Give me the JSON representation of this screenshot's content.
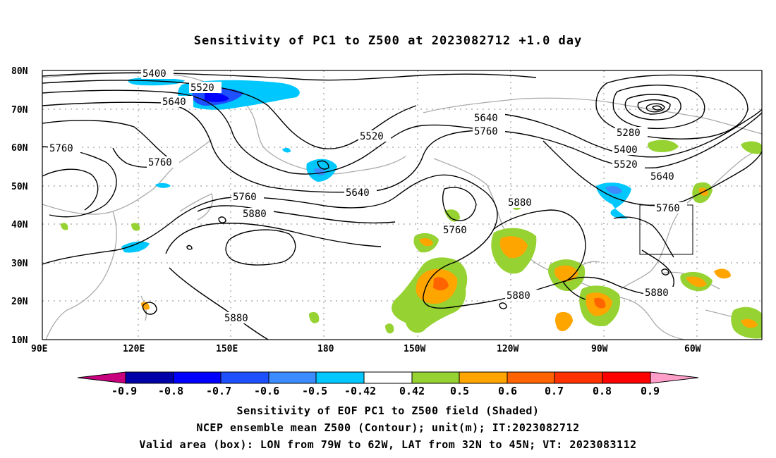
{
  "title": "Sensitivity of PC1 to Z500 at 2023082712 +1.0 day",
  "map": {
    "lat_labels": [
      "80N",
      "70N",
      "60N",
      "50N",
      "40N",
      "30N",
      "20N",
      "10N"
    ],
    "lon_labels": [
      "90E",
      "120E",
      "150E",
      "180",
      "150W",
      "120W",
      "90W",
      "60W"
    ],
    "contour_labels": [
      "5400",
      "5520",
      "5640",
      "5760",
      "5760",
      "5520",
      "5640",
      "5760",
      "5640",
      "5760",
      "5880",
      "5880",
      "5760",
      "5880",
      "5880",
      "5280",
      "5400",
      "5520",
      "5640",
      "5760",
      "5880"
    ],
    "valid_box": {
      "lon_range": [
        "79W",
        "62W"
      ],
      "lat_range": [
        "32N",
        "45N"
      ]
    }
  },
  "colorbar": {
    "labels": [
      "-0.9",
      "-0.8",
      "-0.7",
      "-0.6",
      "-0.5",
      "-0.42",
      "0.42",
      "0.5",
      "0.6",
      "0.7",
      "0.8",
      "0.9"
    ],
    "colors": [
      "#c8007d",
      "#0000a8",
      "#0000ff",
      "#1e50ff",
      "#3c8cff",
      "#00c8ff",
      "#ffffff",
      "#96d232",
      "#ffa500",
      "#ff6400",
      "#ff3200",
      "#ff0000",
      "#ff9ec8"
    ]
  },
  "captions": [
    "Sensitivity of EOF PC1 to Z500 field (Shaded)",
    "NCEP ensemble mean Z500 (Contour); unit(m); IT:2023082712",
    "Valid area (box): LON from 79W to 62W, LAT from 32N to 45N; VT: 2023083112"
  ]
}
